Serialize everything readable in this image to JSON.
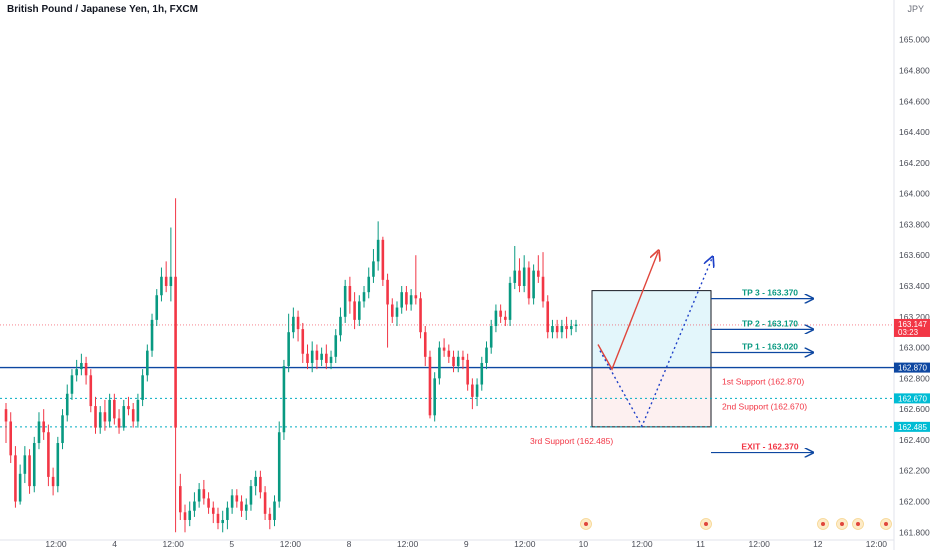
{
  "chart_data": {
    "type": "candlestick",
    "title": "British Pound / Japanese Yen, 1h, FXCM",
    "currency": "JPY",
    "ylim": [
      161.75,
      165.18
    ],
    "y_ticks": [
      "165.000",
      "164.800",
      "164.600",
      "164.400",
      "164.200",
      "164.000",
      "163.800",
      "163.600",
      "163.400",
      "163.200",
      "163.000",
      "162.800",
      "162.600",
      "162.400",
      "162.200",
      "162.000",
      "161.800"
    ],
    "x_ticks": [
      "12:00",
      "4",
      "12:00",
      "5",
      "12:00",
      "8",
      "12:00",
      "9",
      "12:00",
      "10",
      "12:00",
      "11",
      "12:00",
      "12",
      "12:00"
    ],
    "price_tags": [
      {
        "value": 163.147,
        "label": "163.147",
        "sub": "03:23",
        "color": "#f23645"
      },
      {
        "value": 162.87,
        "label": "162.870",
        "color": "#0d47a1"
      },
      {
        "value": 162.67,
        "label": "162.670",
        "color": "#00bcd4"
      },
      {
        "value": 162.485,
        "label": "162.485",
        "color": "#00bcd4"
      }
    ],
    "levels": [
      {
        "name": "1st Support (162.870)",
        "value": 162.87
      },
      {
        "name": "2nd Support (162.670)",
        "value": 162.67
      },
      {
        "name": "3rd Support (162.485)",
        "value": 162.485
      },
      {
        "name": "TP 1 - 163.020",
        "value": 163.02
      },
      {
        "name": "TP 2 - 163.170",
        "value": 163.17
      },
      {
        "name": "TP 3 - 163.370",
        "value": 163.37
      },
      {
        "name": "EXIT - 162.370",
        "value": 162.37
      }
    ],
    "candles": [
      [
        162.6,
        162.52,
        162.64,
        162.38
      ],
      [
        162.52,
        162.3,
        162.58,
        162.25
      ],
      [
        162.3,
        162.0,
        162.36,
        161.96
      ],
      [
        162.0,
        162.18,
        162.24,
        161.98
      ],
      [
        162.18,
        162.3,
        162.36,
        162.12
      ],
      [
        162.3,
        162.1,
        162.34,
        162.05
      ],
      [
        162.1,
        162.38,
        162.42,
        162.06
      ],
      [
        162.38,
        162.52,
        162.58,
        162.34
      ],
      [
        162.52,
        162.45,
        162.6,
        162.4
      ],
      [
        162.45,
        162.16,
        162.5,
        162.1
      ],
      [
        162.16,
        162.1,
        162.22,
        162.04
      ],
      [
        162.1,
        162.38,
        162.42,
        162.06
      ],
      [
        162.38,
        162.56,
        162.6,
        162.34
      ],
      [
        162.56,
        162.7,
        162.76,
        162.52
      ],
      [
        162.7,
        162.82,
        162.86,
        162.66
      ],
      [
        162.82,
        162.86,
        162.92,
        162.78
      ],
      [
        162.86,
        162.9,
        162.96,
        162.82
      ],
      [
        162.9,
        162.82,
        162.94,
        162.76
      ],
      [
        162.82,
        162.62,
        162.86,
        162.58
      ],
      [
        162.62,
        162.48,
        162.68,
        162.44
      ],
      [
        162.48,
        162.58,
        162.62,
        162.44
      ],
      [
        162.58,
        162.52,
        162.66,
        162.46
      ],
      [
        162.52,
        162.66,
        162.7,
        162.48
      ],
      [
        162.66,
        162.54,
        162.7,
        162.5
      ],
      [
        162.54,
        162.48,
        162.6,
        162.44
      ],
      [
        162.48,
        162.62,
        162.66,
        162.46
      ],
      [
        162.62,
        162.6,
        162.68,
        162.56
      ],
      [
        162.6,
        162.52,
        162.64,
        162.48
      ],
      [
        162.52,
        162.66,
        162.7,
        162.48
      ],
      [
        162.66,
        162.82,
        162.86,
        162.62
      ],
      [
        162.82,
        162.98,
        163.02,
        162.78
      ],
      [
        162.98,
        163.18,
        163.22,
        162.94
      ],
      [
        163.18,
        163.34,
        163.38,
        163.14
      ],
      [
        163.34,
        163.46,
        163.52,
        163.3
      ],
      [
        163.46,
        163.4,
        163.56,
        163.36
      ],
      [
        163.4,
        163.46,
        163.78,
        163.3
      ],
      [
        163.46,
        162.48,
        163.97,
        161.8
      ],
      [
        162.1,
        161.93,
        162.18,
        161.88
      ],
      [
        161.93,
        161.88,
        161.98,
        161.8
      ],
      [
        161.88,
        161.94,
        162.0,
        161.84
      ],
      [
        161.94,
        162.0,
        162.06,
        161.9
      ],
      [
        162.0,
        162.08,
        162.12,
        161.96
      ],
      [
        162.08,
        162.02,
        162.14,
        161.98
      ],
      [
        162.02,
        161.96,
        162.06,
        161.92
      ],
      [
        161.96,
        161.92,
        162.0,
        161.86
      ],
      [
        161.92,
        161.86,
        161.96,
        161.82
      ],
      [
        161.86,
        161.88,
        161.94,
        161.8
      ],
      [
        161.88,
        161.96,
        162.0,
        161.82
      ],
      [
        161.96,
        162.04,
        162.08,
        161.92
      ],
      [
        162.04,
        162.0,
        162.08,
        161.96
      ],
      [
        162.0,
        161.94,
        162.04,
        161.9
      ],
      [
        161.94,
        161.98,
        162.02,
        161.88
      ],
      [
        161.98,
        162.1,
        162.14,
        161.94
      ],
      [
        162.1,
        162.16,
        162.2,
        162.04
      ],
      [
        162.16,
        162.06,
        162.2,
        162.02
      ],
      [
        162.06,
        161.92,
        162.1,
        161.88
      ],
      [
        161.92,
        161.88,
        161.96,
        161.82
      ],
      [
        161.88,
        162.0,
        162.04,
        161.84
      ],
      [
        162.0,
        162.45,
        162.52,
        161.96
      ],
      [
        162.45,
        162.88,
        162.92,
        162.4
      ],
      [
        162.88,
        163.1,
        163.22,
        162.84
      ],
      [
        163.1,
        163.2,
        163.26,
        163.06
      ],
      [
        163.2,
        163.12,
        163.24,
        163.04
      ],
      [
        163.12,
        162.96,
        163.16,
        162.9
      ],
      [
        162.96,
        162.9,
        163.02,
        162.86
      ],
      [
        162.9,
        162.98,
        163.04,
        162.84
      ],
      [
        162.98,
        162.92,
        163.02,
        162.86
      ],
      [
        162.92,
        162.96,
        163.0,
        162.88
      ],
      [
        162.96,
        162.9,
        163.02,
        162.86
      ],
      [
        162.9,
        162.94,
        162.98,
        162.86
      ],
      [
        162.94,
        163.08,
        163.12,
        162.9
      ],
      [
        163.08,
        163.2,
        163.26,
        163.04
      ],
      [
        163.2,
        163.4,
        163.44,
        163.16
      ],
      [
        163.4,
        163.3,
        163.46,
        163.22
      ],
      [
        163.3,
        163.18,
        163.36,
        163.12
      ],
      [
        163.18,
        163.3,
        163.34,
        163.14
      ],
      [
        163.3,
        163.36,
        163.4,
        163.26
      ],
      [
        163.36,
        163.46,
        163.52,
        163.32
      ],
      [
        163.46,
        163.56,
        163.64,
        163.42
      ],
      [
        163.56,
        163.7,
        163.82,
        163.5
      ],
      [
        163.7,
        163.44,
        163.72,
        163.4
      ],
      [
        163.44,
        163.28,
        163.48,
        163.0
      ],
      [
        163.28,
        163.2,
        163.32,
        163.16
      ],
      [
        163.2,
        163.26,
        163.3,
        163.14
      ],
      [
        163.26,
        163.36,
        163.4,
        163.22
      ],
      [
        163.36,
        163.28,
        163.4,
        163.24
      ],
      [
        163.28,
        163.34,
        163.38,
        163.24
      ],
      [
        163.34,
        163.32,
        163.6,
        163.28
      ],
      [
        163.32,
        163.1,
        163.36,
        163.06
      ],
      [
        163.1,
        162.94,
        163.14,
        162.88
      ],
      [
        162.94,
        162.56,
        162.98,
        162.54
      ],
      [
        162.56,
        162.8,
        162.84,
        162.52
      ],
      [
        162.8,
        163.0,
        163.04,
        162.76
      ],
      [
        163.0,
        162.98,
        163.06,
        162.94
      ],
      [
        162.98,
        162.94,
        163.02,
        162.9
      ],
      [
        162.94,
        162.88,
        162.98,
        162.84
      ],
      [
        162.88,
        162.94,
        162.98,
        162.84
      ],
      [
        162.94,
        162.92,
        162.98,
        162.86
      ],
      [
        162.92,
        162.76,
        162.96,
        162.72
      ],
      [
        162.76,
        162.68,
        162.8,
        162.6
      ],
      [
        162.68,
        162.76,
        162.8,
        162.62
      ],
      [
        162.76,
        162.9,
        162.94,
        162.72
      ],
      [
        162.9,
        163.0,
        163.04,
        162.86
      ],
      [
        163.0,
        163.14,
        163.18,
        162.96
      ],
      [
        163.14,
        163.24,
        163.28,
        163.1
      ],
      [
        163.24,
        163.2,
        163.28,
        163.16
      ],
      [
        163.2,
        163.18,
        163.24,
        163.14
      ],
      [
        163.18,
        163.42,
        163.46,
        163.14
      ],
      [
        163.42,
        163.5,
        163.66,
        163.38
      ],
      [
        163.5,
        163.4,
        163.58,
        163.36
      ],
      [
        163.4,
        163.52,
        163.6,
        163.36
      ],
      [
        163.52,
        163.32,
        163.56,
        163.28
      ],
      [
        163.32,
        163.5,
        163.54,
        163.28
      ],
      [
        163.5,
        163.46,
        163.6,
        163.42
      ],
      [
        163.46,
        163.3,
        163.62,
        163.26
      ],
      [
        163.3,
        163.1,
        163.34,
        163.06
      ],
      [
        163.1,
        163.14,
        163.18,
        163.06
      ],
      [
        163.14,
        163.1,
        163.18,
        163.06
      ],
      [
        163.1,
        163.14,
        163.18,
        163.06
      ],
      [
        163.14,
        163.12,
        163.2,
        163.06
      ],
      [
        163.12,
        163.14,
        163.18,
        163.08
      ],
      [
        163.14,
        163.15,
        163.18,
        163.1
      ]
    ]
  },
  "icons": [
    "flag-icon",
    "flag-icon",
    "flag-icon",
    "flag-icon",
    "flag-icon"
  ]
}
